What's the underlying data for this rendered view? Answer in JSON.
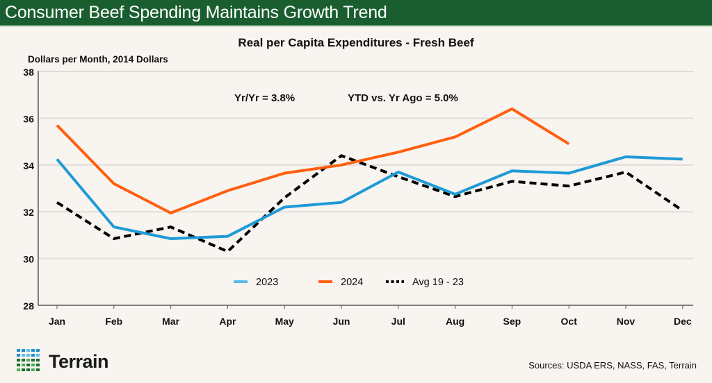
{
  "header": {
    "title": "Consumer Beef Spending Maintains Growth Trend"
  },
  "colors": {
    "header_bg": "#1a5e30",
    "series_2023": "#1f9ad6",
    "series_2024": "#ff5f0f",
    "series_avg": "#000000",
    "grid": "#e2dcd8",
    "background": "#f8f4f0"
  },
  "annotations": {
    "yoy": "Yr/Yr = 3.8%",
    "ytd": "YTD vs. Yr Ago = 5.0%"
  },
  "footer": {
    "brand": "Terrain",
    "sources": "Sources: USDA ERS, NASS, FAS, Terrain"
  },
  "logo_colors": [
    "#1f8fd0",
    "#1f8fd0",
    "#5cc0ef",
    "#1f8fd0",
    "#1f8fd0",
    "#1f8fd0",
    "#5cc0ef",
    "#5cc0ef",
    "#1f8fd0",
    "#5cc0ef",
    "#1b6b32",
    "#1b6b32",
    "#4caf4f",
    "#1b6b32",
    "#1b6b32",
    "#1b6b32",
    "#4caf4f",
    "#1b6b32",
    "#4caf4f",
    "#1b6b32",
    "#4caf4f",
    "#1b6b32",
    "#1b6b32",
    "#4caf4f",
    "#1b6b32"
  ],
  "chart_data": {
    "type": "line",
    "title": "Real per Capita Expenditures - Fresh Beef",
    "ylabel": "Dollars per Month, 2014 Dollars",
    "xlabel": "",
    "categories": [
      "Jan",
      "Feb",
      "Mar",
      "Apr",
      "May",
      "Jun",
      "Jul",
      "Aug",
      "Sep",
      "Oct",
      "Nov",
      "Dec"
    ],
    "ylim": [
      28,
      38
    ],
    "yticks": [
      28,
      30,
      32,
      34,
      36,
      38
    ],
    "grid": true,
    "legend_position": "bottom-center",
    "series": [
      {
        "name": "2023",
        "style": "solid",
        "values": [
          34.25,
          31.35,
          30.85,
          30.95,
          32.2,
          32.4,
          33.7,
          32.75,
          33.75,
          33.65,
          34.35,
          34.25
        ]
      },
      {
        "name": "2024",
        "style": "solid",
        "values": [
          35.7,
          33.2,
          31.95,
          32.9,
          33.65,
          34.0,
          34.55,
          35.2,
          36.4,
          34.9,
          null,
          null
        ]
      },
      {
        "name": "Avg 19 - 23",
        "style": "dashed",
        "values": [
          32.4,
          30.85,
          31.35,
          30.3,
          32.6,
          34.4,
          33.5,
          32.65,
          33.3,
          33.1,
          33.7,
          32.05
        ]
      }
    ]
  }
}
